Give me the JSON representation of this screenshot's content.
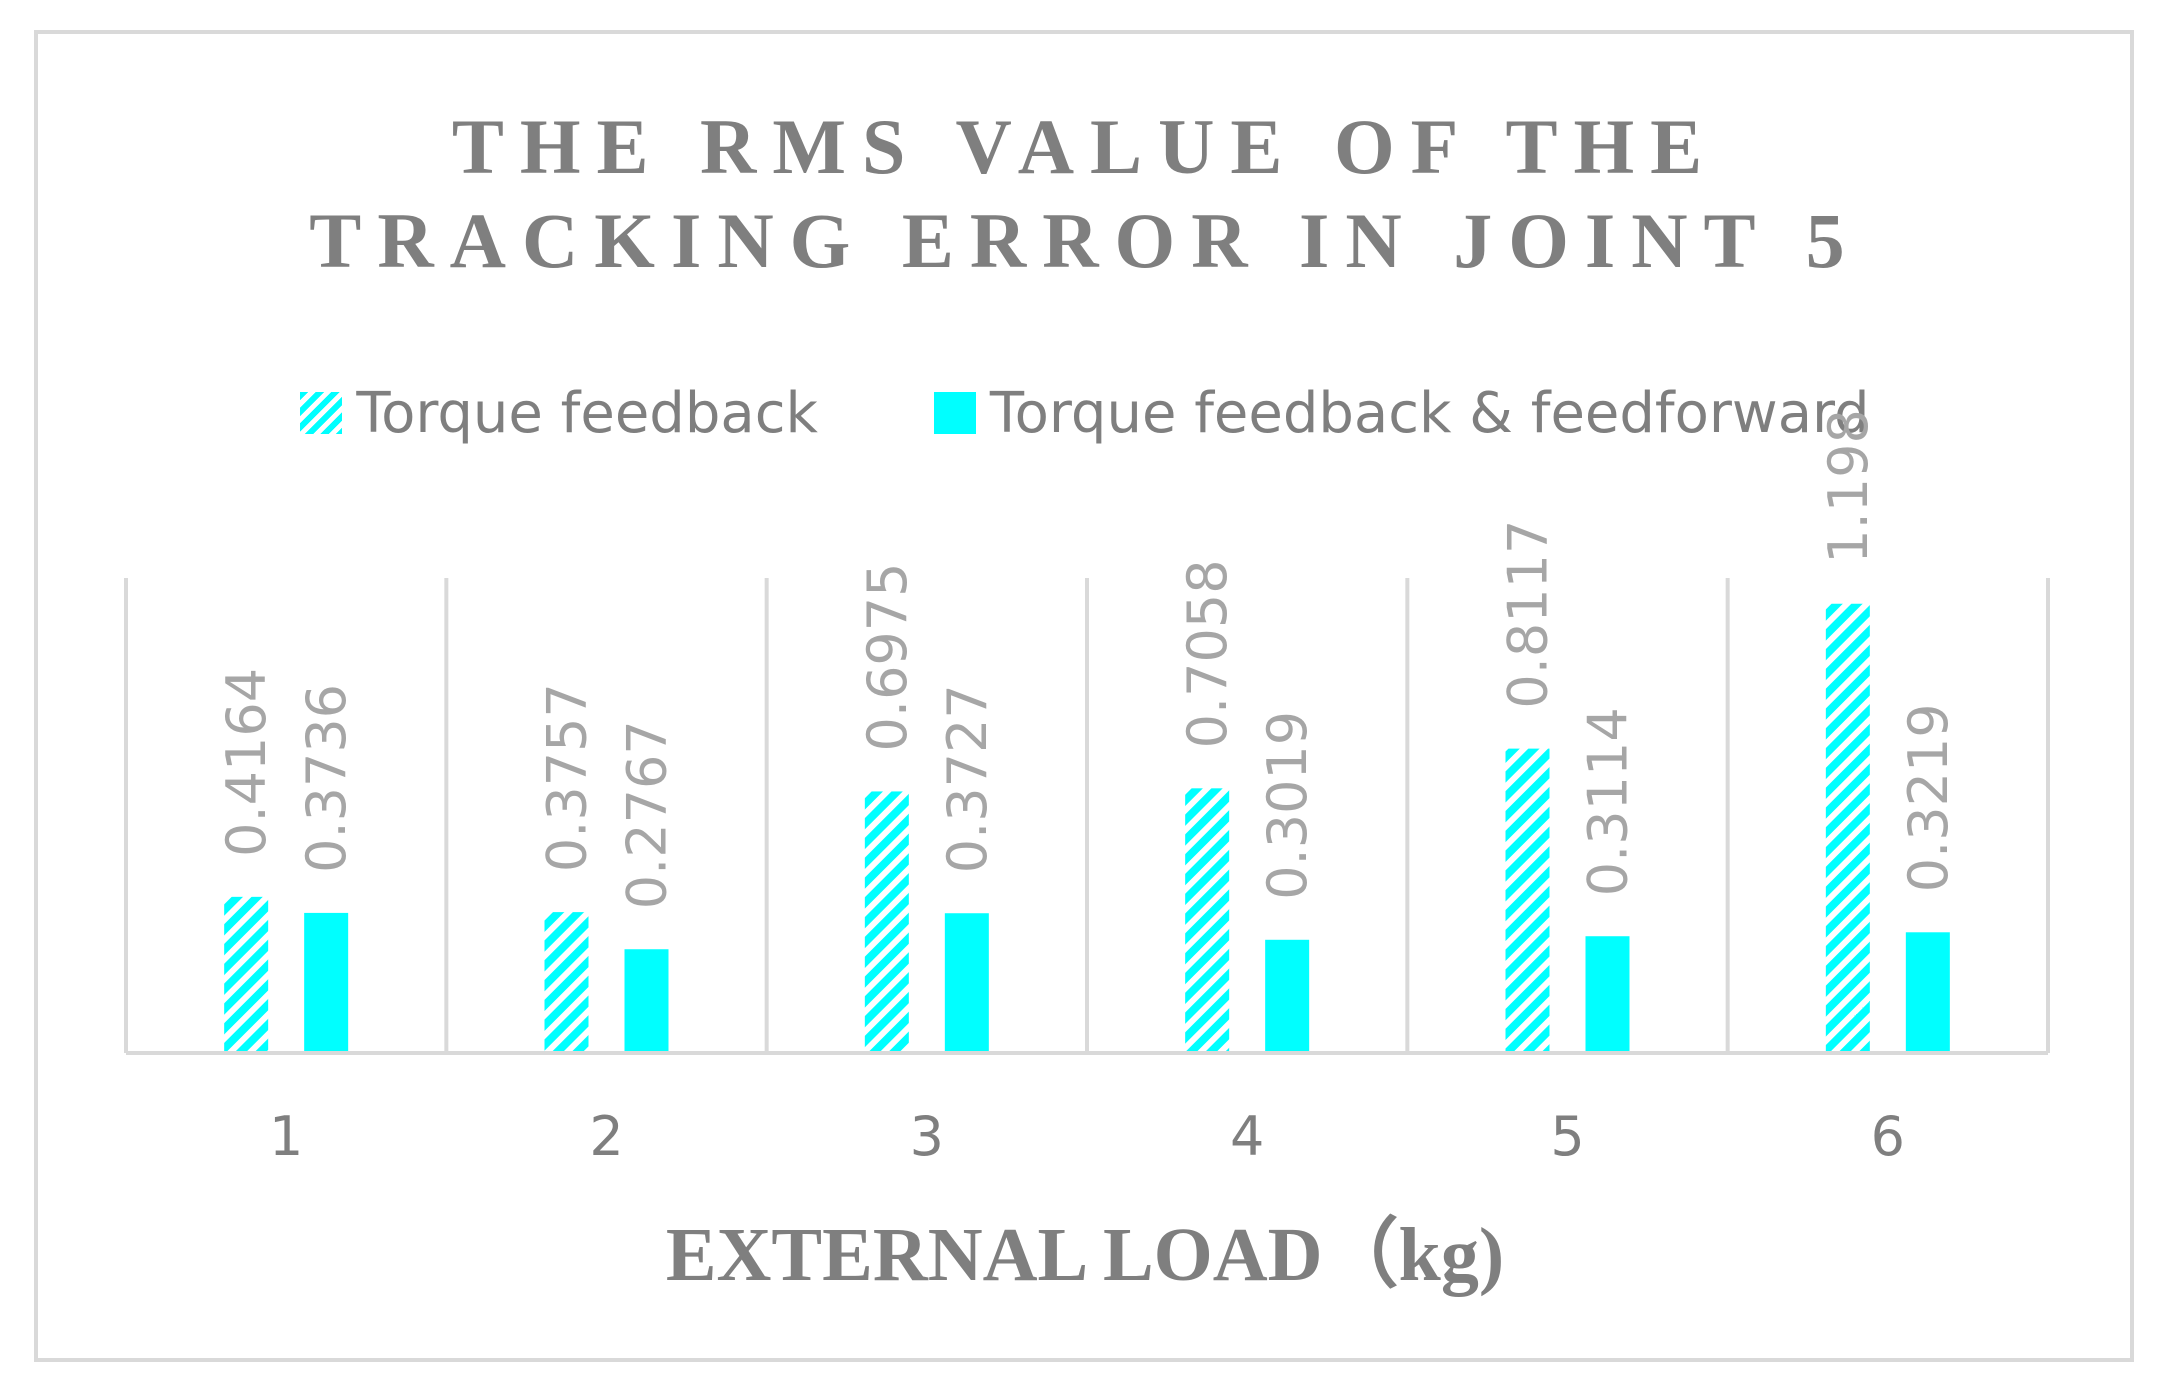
{
  "chart_data": {
    "type": "bar",
    "title_lines": [
      "THE RMS VALUE OF THE",
      "TRACKING ERROR IN JOINT 5"
    ],
    "xlabel": "EXTERNAL LOAD（kg)",
    "ylabel": "",
    "categories": [
      "1",
      "2",
      "3",
      "4",
      "5",
      "6"
    ],
    "series": [
      {
        "name": "Torque feedback",
        "values": [
          0.4164,
          0.3757,
          0.6975,
          0.7058,
          0.8117,
          1.198
        ],
        "labels": [
          "0.4164",
          "0.3757",
          "0.6975",
          "0.7058",
          "0.8117",
          "1.198"
        ],
        "fill": "hatched",
        "color": "#00ffff"
      },
      {
        "name": "Torque feedback & feedforward",
        "values": [
          0.3736,
          0.2767,
          0.3727,
          0.3019,
          0.3114,
          0.3219
        ],
        "labels": [
          "0.3736",
          "0.2767",
          "0.3727",
          "0.3019",
          "0.3114",
          "0.3219"
        ],
        "fill": "solid",
        "color": "#00ffff"
      }
    ],
    "ylim": [
      0,
      1.5
    ],
    "grid": "vertical category separators",
    "legend_position": "top"
  }
}
